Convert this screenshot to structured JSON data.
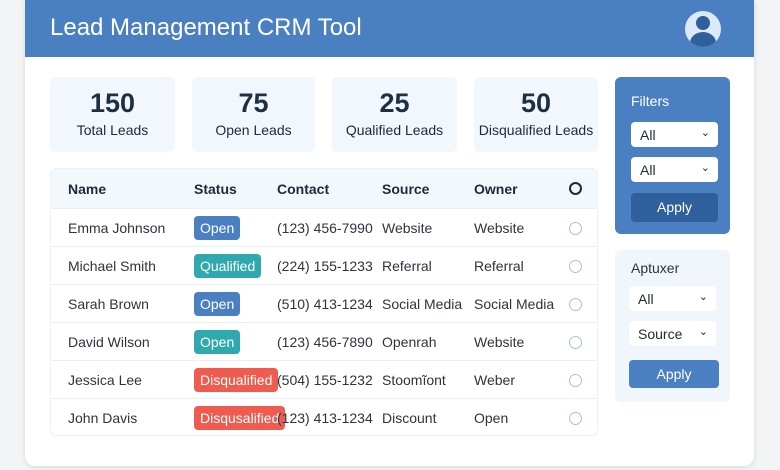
{
  "header": {
    "title": "Lead Management CRM Tool"
  },
  "stats": [
    {
      "value": "150",
      "label": "Total Leads"
    },
    {
      "value": "75",
      "label": "Open Leads"
    },
    {
      "value": "25",
      "label": "Qualified Leads"
    },
    {
      "value": "50",
      "label": "Disqualified Leads"
    }
  ],
  "table": {
    "columns": [
      "Name",
      "Status",
      "Contact",
      "Source",
      "Owner"
    ],
    "rows": [
      {
        "name": "Emma Johnson",
        "status": "Open",
        "contact": "(123) 456-7990",
        "source": "Website",
        "owner": "Website"
      },
      {
        "name": "Michael Smith",
        "status": "Qualified",
        "contact": "(224) 155-1233",
        "source": "Referral",
        "owner": "Referral"
      },
      {
        "name": "Sarah Brown",
        "status": "Open",
        "contact": "(510) 413-1234",
        "source": "Social Media",
        "owner": "Social Media"
      },
      {
        "name": "David Wilson",
        "status": "Open",
        "contact": "(123) 456-7890",
        "source": "Openrah",
        "owner": "Website"
      },
      {
        "name": "Jessica Lee",
        "status": "Disqualified",
        "contact": "(504) 155-1232",
        "source": "Stoomĩont",
        "owner": "Weber"
      },
      {
        "name": "John Davis",
        "status": "Disqusalified",
        "contact": "(123) 413-1234",
        "source": "Discount",
        "owner": "Open"
      }
    ]
  },
  "filters": {
    "title": "Filters",
    "select1": "All",
    "select2": "All",
    "apply": "Apply"
  },
  "filters2": {
    "title": "Aptuxer",
    "select1": "All",
    "select2": "Source",
    "apply": "Apply"
  },
  "colors": {
    "primary": "#4a80c2",
    "open": "#4a80c2",
    "teal": "#2fa8ae",
    "disqualified": "#ef5b4f"
  }
}
